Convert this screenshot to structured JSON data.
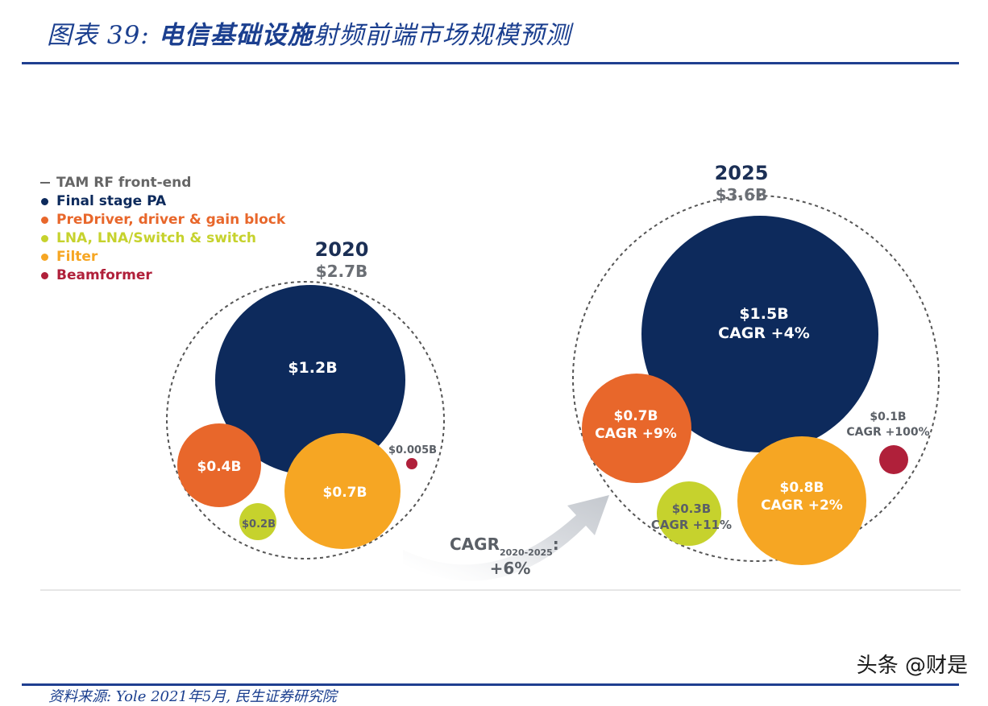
{
  "header": {
    "prefix": "图表 39: ",
    "title_bold": "电信基础设施",
    "title_rest": "射频前端市场规模预测"
  },
  "legend": {
    "items": [
      {
        "label": "TAM RF front-end",
        "color": "#666666",
        "marker": "dash"
      },
      {
        "label": "Final stage PA",
        "color": "#0d2a5c",
        "marker": "dot"
      },
      {
        "label": "PreDriver, driver & gain block",
        "color": "#e8672b",
        "marker": "dot"
      },
      {
        "label": "LNA, LNA/Switch & switch",
        "color": "#c6d22d",
        "marker": "dot"
      },
      {
        "label": "Filter",
        "color": "#f6a623",
        "marker": "dot"
      },
      {
        "label": "Beamformer",
        "color": "#b0203a",
        "marker": "dot"
      }
    ]
  },
  "chart_data": {
    "type": "bubble",
    "unit": "B USD",
    "categories": [
      "Final stage PA",
      "PreDriver, driver & gain block",
      "LNA, LNA/Switch & switch",
      "Filter",
      "Beamformer"
    ],
    "years": [
      {
        "year": "2020",
        "total_label": "$2.7B",
        "total": 2.7,
        "segments": [
          {
            "name": "Final stage PA",
            "value": 1.2,
            "label": "$1.2B",
            "cagr": ""
          },
          {
            "name": "PreDriver, driver & gain block",
            "value": 0.4,
            "label": "$0.4B",
            "cagr": ""
          },
          {
            "name": "LNA, LNA/Switch & switch",
            "value": 0.2,
            "label": "$0.2B",
            "cagr": ""
          },
          {
            "name": "Filter",
            "value": 0.7,
            "label": "$0.7B",
            "cagr": ""
          },
          {
            "name": "Beamformer",
            "value": 0.005,
            "label": "$0.005B",
            "cagr": ""
          }
        ]
      },
      {
        "year": "2025",
        "total_label": "$3.6B",
        "total": 3.6,
        "segments": [
          {
            "name": "Final stage PA",
            "value": 1.5,
            "label": "$1.5B",
            "cagr": "CAGR +4%"
          },
          {
            "name": "PreDriver, driver & gain block",
            "value": 0.7,
            "label": "$0.7B",
            "cagr": "CAGR +9%"
          },
          {
            "name": "LNA, LNA/Switch & switch",
            "value": 0.3,
            "label": "$0.3B",
            "cagr": "CAGR +11%"
          },
          {
            "name": "Filter",
            "value": 0.8,
            "label": "$0.8B",
            "cagr": "CAGR +2%"
          },
          {
            "name": "Beamformer",
            "value": 0.1,
            "label": "$0.1B",
            "cagr": "CAGR +100%"
          }
        ]
      }
    ],
    "overall_cagr": {
      "prefix": "CAGR",
      "subscript": "2020-2025",
      "suffix": ":",
      "value": "+6%"
    }
  },
  "footer": {
    "source": "资料来源: Yole 2021年5月, 民生证券研究院"
  },
  "watermark": "头条 @财是"
}
